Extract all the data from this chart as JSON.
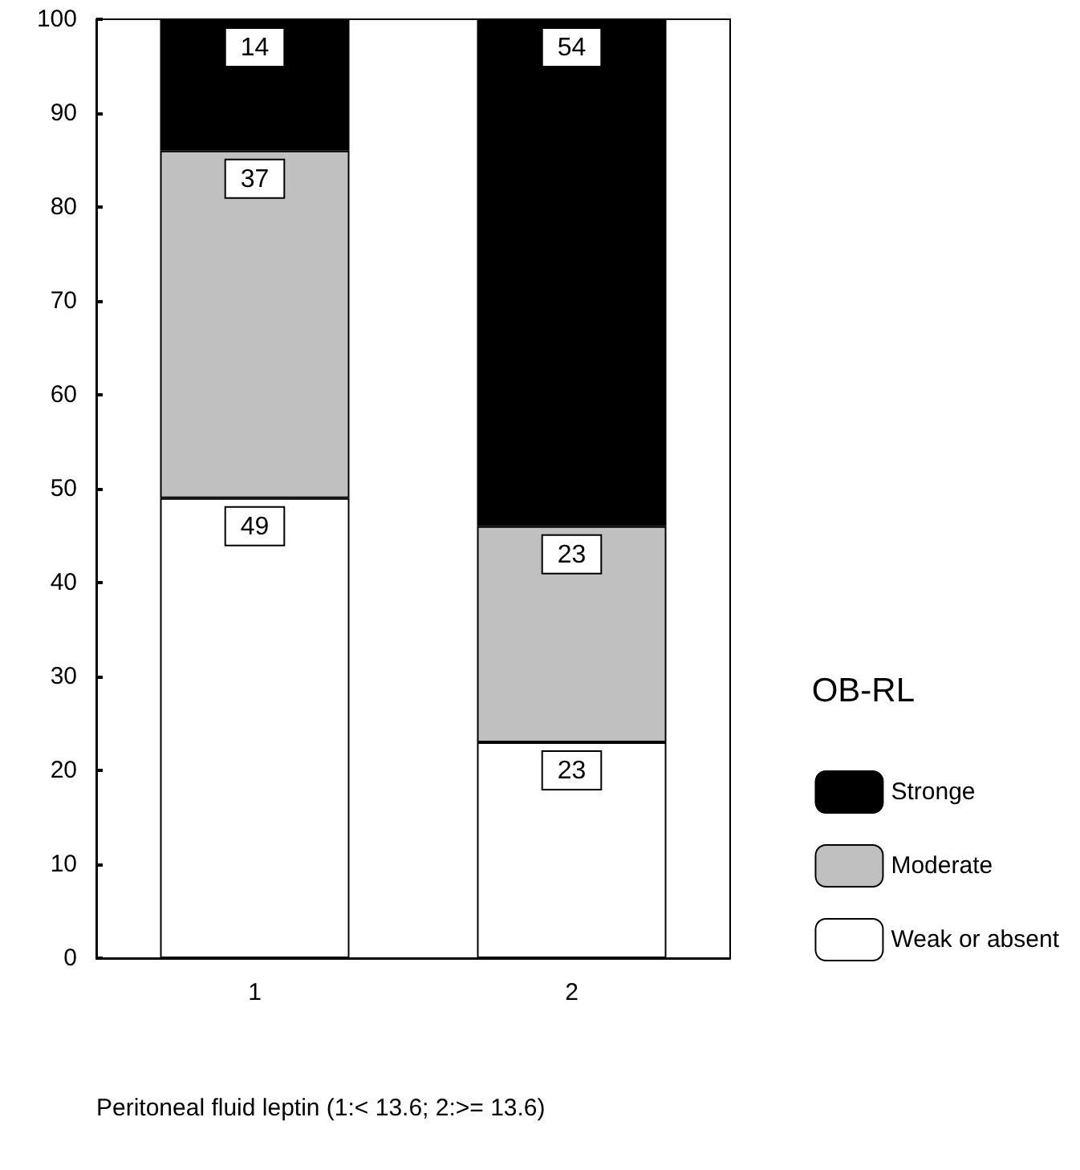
{
  "chart_data": {
    "type": "bar",
    "stacked": true,
    "categories": [
      "1",
      "2"
    ],
    "xlabel": "Peritoneal fluid leptin (1:< 13.6; 2:>= 13.6)",
    "legend_title": "OB-RL",
    "legend": "right",
    "data_labels": true,
    "grid": false,
    "ylim": [
      0,
      100
    ],
    "yticks": [
      0,
      10,
      20,
      30,
      40,
      50,
      60,
      70,
      80,
      90,
      100
    ],
    "series": [
      {
        "name": "Weak or absent",
        "color": "#ffffff",
        "values": [
          49,
          23
        ]
      },
      {
        "name": "Moderate",
        "color": "#c0c0c0",
        "values": [
          37,
          23
        ]
      },
      {
        "name": "Stronge",
        "color": "#000000",
        "values": [
          14,
          54
        ]
      }
    ]
  }
}
